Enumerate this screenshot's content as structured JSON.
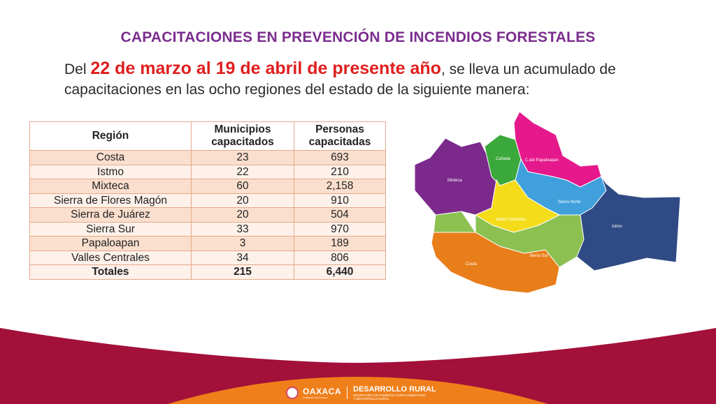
{
  "title": "CAPACITACIONES EN PREVENCIÓN DE INCENDIOS FORESTALES",
  "intro": {
    "prefix": "Del ",
    "highlight": "22 de marzo al 19 de abril de presente año",
    "suffix": ", se lleva un acumulado de capacitaciones en las ocho regiones del estado de la siguiente manera:"
  },
  "table": {
    "headers": {
      "region": "Región",
      "municipios": "Municipios capacitados",
      "personas": "Personas capacitadas"
    },
    "rows": [
      {
        "region": "Costa",
        "municipios": "23",
        "personas": "693"
      },
      {
        "region": "Istmo",
        "municipios": "22",
        "personas": "210"
      },
      {
        "region": "Mixteca",
        "municipios": "60",
        "personas": "2,158"
      },
      {
        "region": "Sierra de Flores Magón",
        "municipios": "20",
        "personas": "910"
      },
      {
        "region": "Sierra de Juárez",
        "municipios": "20",
        "personas": "504"
      },
      {
        "region": "Sierra Sur",
        "municipios": "33",
        "personas": "970"
      },
      {
        "region": "Papaloapan",
        "municipios": "3",
        "personas": "189"
      },
      {
        "region": "Valles Centrales",
        "municipios": "34",
        "personas": "806"
      }
    ],
    "totals": {
      "region": "Totales",
      "municipios": "215",
      "personas": "6,440"
    }
  },
  "map": {
    "labels": {
      "mixteca": "Mixteca",
      "canada": "Cañada",
      "papaloapan": "C.del Papaloapan",
      "sierra_norte": "Sierra Norte",
      "valles": "Valles Centrales",
      "istmo": "Istmo",
      "sierra_sur": "Sierra Sur",
      "costa": "Costa"
    },
    "colors": {
      "mixteca": "#7b2a8c",
      "canada": "#3aa83a",
      "papaloapan": "#e5198c",
      "sierra_norte": "#3fa0dc",
      "valles": "#f4dc1a",
      "istmo": "#2f4a84",
      "sierra_sur": "#8cc152",
      "costa": "#e87e1a"
    }
  },
  "footer": {
    "logo_name": "OAXACA",
    "logo_sub": "GOBIERNO DEL ESTADO",
    "dept": "DESARROLLO RURAL",
    "dept_sub_1": "SECRETARÍA DE FOMENTO AGROALIMENTARIO",
    "dept_sub_2": "Y DESARROLLO RURAL",
    "colors": {
      "band": "#a3103a",
      "accent": "#ef7f1a"
    }
  }
}
